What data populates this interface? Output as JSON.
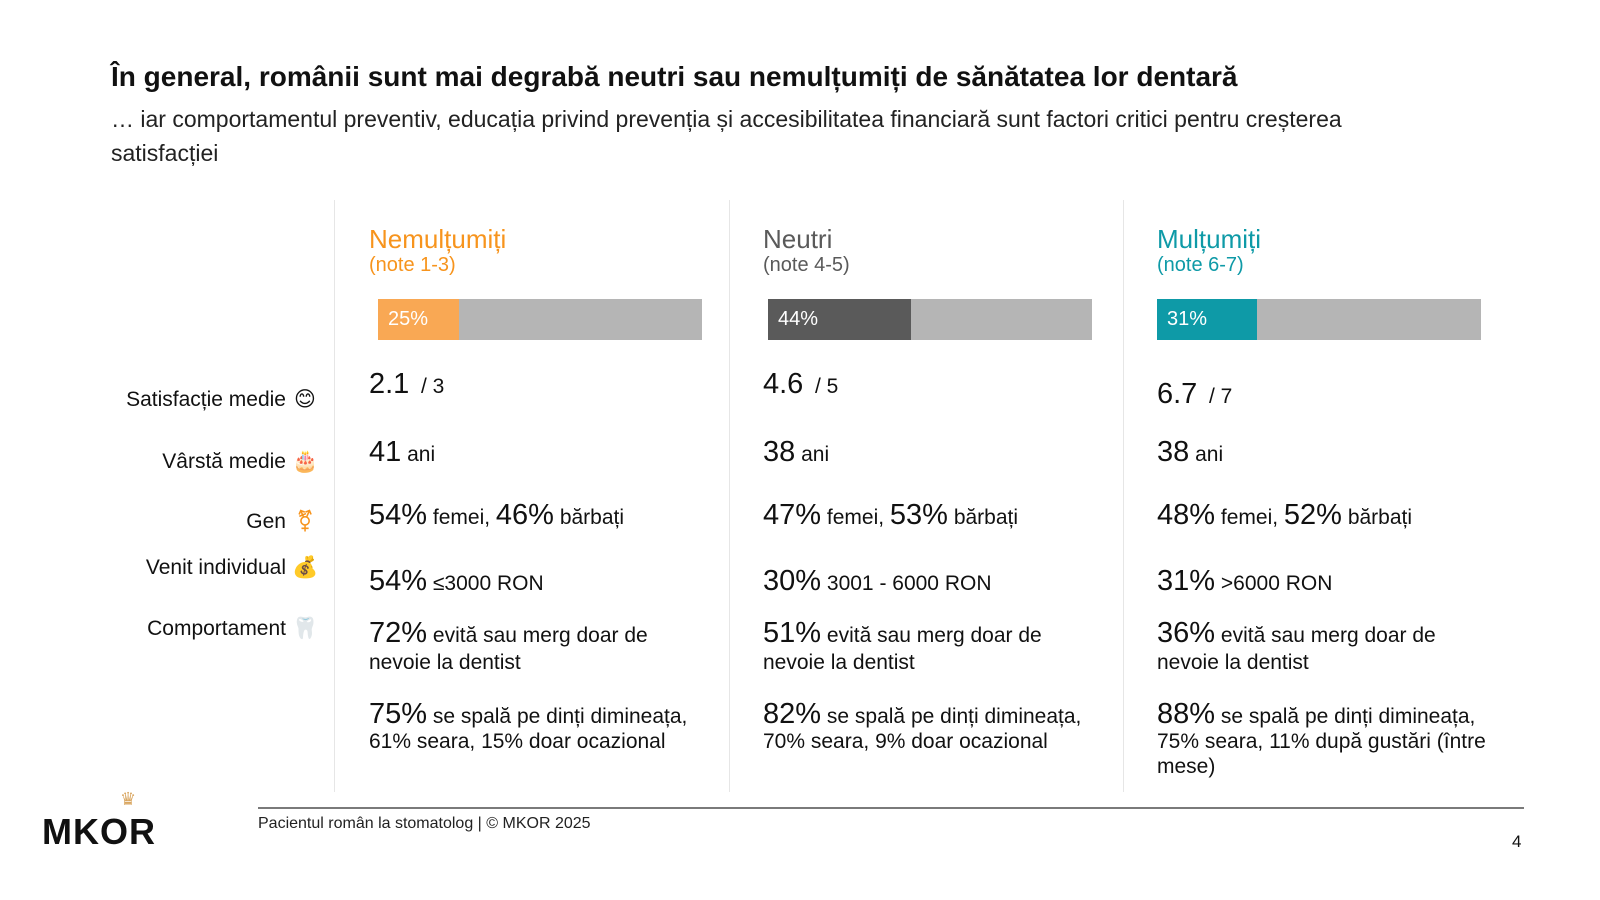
{
  "title": "În general, românii sunt mai degrabă neutri sau nemulțumiți de sănătatea lor dentară",
  "subtitle": "… iar comportamentul preventiv, educația privind prevenția și accesibilitatea financiară sunt factori critici pentru creșterea satisfacției",
  "row_labels": [
    {
      "label": "Satisfacție medie",
      "icon": "😊"
    },
    {
      "label": "Vârstă medie",
      "icon": "🎂"
    },
    {
      "label": "Gen",
      "icon": "⚧"
    },
    {
      "label": "Venit individual",
      "icon": "💰"
    },
    {
      "label": "Comportament",
      "icon": "🦷"
    }
  ],
  "columns": [
    {
      "name": "Nemulțumiți",
      "range": "(note 1-3)",
      "color": "#F7941D",
      "bar_color": "#F9A854",
      "share_pct": 25,
      "share_label": "25%",
      "score": "2.1",
      "score_max": "/ 3",
      "age": "41",
      "age_unit": "ani",
      "women": "54%",
      "women_label": "femei,",
      "men": "46%",
      "men_label": "bărbați",
      "income_pct": "54%",
      "income_label": "≤3000 RON",
      "beh1_pct": "72%",
      "beh1": "evită sau merg doar de nevoie la dentist",
      "beh2_pct": "75%",
      "beh2": "se spală pe dinți dimineața, 61% seara, 15% doar ocazional"
    },
    {
      "name": "Neutri",
      "range": "(note 4-5)",
      "color": "#5a5a5a",
      "bar_color": "#5a5a5a",
      "share_pct": 44,
      "share_label": "44%",
      "score": "4.6",
      "score_max": "/ 5",
      "age": "38",
      "age_unit": "ani",
      "women": "47%",
      "women_label": "femei,",
      "men": "53%",
      "men_label": "bărbați",
      "income_pct": "30%",
      "income_label": "3001 - 6000 RON",
      "beh1_pct": "51%",
      "beh1": "evită sau merg doar de nevoie la dentist",
      "beh2_pct": "82%",
      "beh2": "se spală pe dinți dimineața, 70% seara, 9% doar ocazional"
    },
    {
      "name": "Mulțumiți",
      "range": "(note 6-7)",
      "color": "#0E9AA7",
      "bar_color": "#0E9AA7",
      "share_pct": 31,
      "share_label": "31%",
      "score": "6.7",
      "score_max": "/ 7",
      "age": "38",
      "age_unit": "ani",
      "women": "48%",
      "women_label": "femei,",
      "men": "52%",
      "men_label": "bărbați",
      "income_pct": "31%",
      "income_label": ">6000 RON",
      "beh1_pct": "36%",
      "beh1": "evită sau merg doar de nevoie la dentist",
      "beh2_pct": "88%",
      "beh2": "se spală pe dinți dimineața, 75% seara, 11% după gustări (între mese)"
    }
  ],
  "footer": "Pacientul român la stomatolog | © MKOR 2025",
  "page_number": "4",
  "logo": "MKOR"
}
